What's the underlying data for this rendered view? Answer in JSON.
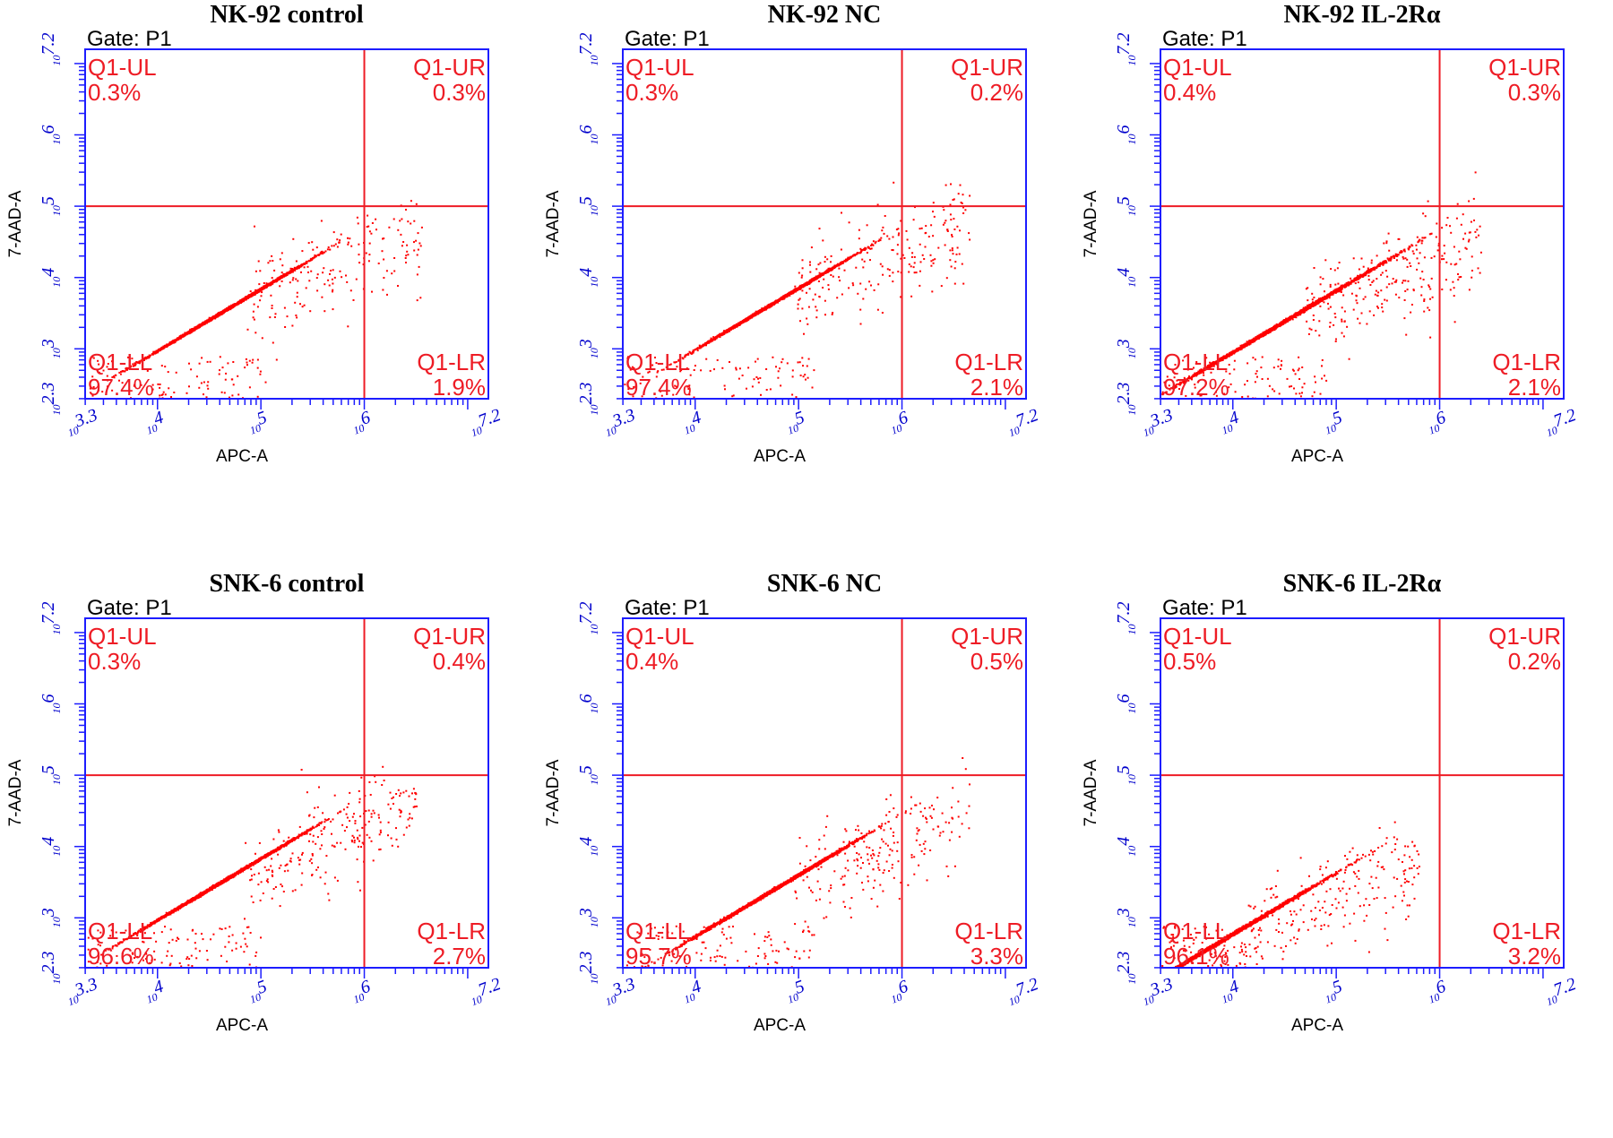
{
  "chart_data": [
    {
      "type": "scatter",
      "title": "NK-92 control",
      "gate": "Gate: P1",
      "xlabel": "APC-A",
      "ylabel": "7-AAD-A",
      "x_scale": "log",
      "y_scale": "log",
      "xlim_log10": [
        3.3,
        7.2
      ],
      "ylim_log10": [
        2.3,
        7.2
      ],
      "x_ticks": [
        "10^3.3",
        "10^4",
        "10^5",
        "10^6",
        "10^7.2"
      ],
      "y_ticks": [
        "10^2.3",
        "10^3",
        "10^4",
        "10^5",
        "10^6",
        "10^7.2"
      ],
      "gate_x_log10": 6.0,
      "gate_y_log10": 5.0,
      "quadrants": {
        "UL": {
          "name": "Q1-UL",
          "pct": "0.3%"
        },
        "UR": {
          "name": "Q1-UR",
          "pct": "0.3%"
        },
        "LL": {
          "name": "Q1-LL",
          "pct": "97.4%"
        },
        "LR": {
          "name": "Q1-LR",
          "pct": "1.9%"
        }
      },
      "cluster": {
        "cx_log10": 4.65,
        "cy_log10": 3.55,
        "spread": 0.38
      }
    },
    {
      "type": "scatter",
      "title": "NK-92 NC",
      "gate": "Gate: P1",
      "xlabel": "APC-A",
      "ylabel": "7-AAD-A",
      "x_scale": "log",
      "y_scale": "log",
      "xlim_log10": [
        3.3,
        7.2
      ],
      "ylim_log10": [
        2.3,
        7.2
      ],
      "x_ticks": [
        "10^3.3",
        "10^4",
        "10^5",
        "10^6",
        "10^7.2"
      ],
      "y_ticks": [
        "10^2.3",
        "10^3",
        "10^4",
        "10^5",
        "10^6",
        "10^7.2"
      ],
      "gate_x_log10": 6.0,
      "gate_y_log10": 5.0,
      "quadrants": {
        "UL": {
          "name": "Q1-UL",
          "pct": "0.3%"
        },
        "UR": {
          "name": "Q1-UR",
          "pct": "0.2%"
        },
        "LL": {
          "name": "Q1-LL",
          "pct": "97.4%"
        },
        "LR": {
          "name": "Q1-LR",
          "pct": "2.1%"
        }
      },
      "cluster": {
        "cx_log10": 4.75,
        "cy_log10": 3.65,
        "spread": 0.36
      }
    },
    {
      "type": "scatter",
      "title": "NK-92 IL-2Rα",
      "gate": "Gate: P1",
      "xlabel": "APC-A",
      "ylabel": "7-AAD-A",
      "x_scale": "log",
      "y_scale": "log",
      "xlim_log10": [
        3.3,
        7.2
      ],
      "ylim_log10": [
        2.3,
        7.2
      ],
      "x_ticks": [
        "10^3.3",
        "10^4",
        "10^5",
        "10^6",
        "10^7.2"
      ],
      "y_ticks": [
        "10^2.3",
        "10^3",
        "10^4",
        "10^5",
        "10^6",
        "10^7.2"
      ],
      "gate_x_log10": 6.0,
      "gate_y_log10": 5.0,
      "quadrants": {
        "UL": {
          "name": "Q1-UL",
          "pct": "0.4%"
        },
        "UR": {
          "name": "Q1-UR",
          "pct": "0.3%"
        },
        "LL": {
          "name": "Q1-LL",
          "pct": "97.2%"
        },
        "LR": {
          "name": "Q1-LR",
          "pct": "2.1%"
        }
      },
      "cluster": {
        "cx_log10": 4.5,
        "cy_log10": 3.4,
        "spread": 0.5
      }
    },
    {
      "type": "scatter",
      "title": "SNK-6 control",
      "gate": "Gate: P1",
      "xlabel": "APC-A",
      "ylabel": "7-AAD-A",
      "x_scale": "log",
      "y_scale": "log",
      "xlim_log10": [
        3.3,
        7.2
      ],
      "ylim_log10": [
        2.3,
        7.2
      ],
      "x_ticks": [
        "10^3.3",
        "10^4",
        "10^5",
        "10^6",
        "10^7.2"
      ],
      "y_ticks": [
        "10^2.3",
        "10^3",
        "10^4",
        "10^5",
        "10^6",
        "10^7.2"
      ],
      "gate_x_log10": 6.0,
      "gate_y_log10": 5.0,
      "quadrants": {
        "UL": {
          "name": "Q1-UL",
          "pct": "0.3%"
        },
        "UR": {
          "name": "Q1-UR",
          "pct": "0.4%"
        },
        "LL": {
          "name": "Q1-LL",
          "pct": "96.6%"
        },
        "LR": {
          "name": "Q1-LR",
          "pct": "2.7%"
        }
      },
      "cluster": {
        "cx_log10": 4.6,
        "cy_log10": 3.5,
        "spread": 0.4
      }
    },
    {
      "type": "scatter",
      "title": "SNK-6 NC",
      "gate": "Gate: P1",
      "xlabel": "APC-A",
      "ylabel": "7-AAD-A",
      "x_scale": "log",
      "y_scale": "log",
      "xlim_log10": [
        3.3,
        7.2
      ],
      "ylim_log10": [
        2.3,
        7.2
      ],
      "x_ticks": [
        "10^3.3",
        "10^4",
        "10^5",
        "10^6",
        "10^7.2"
      ],
      "y_ticks": [
        "10^2.3",
        "10^3",
        "10^4",
        "10^5",
        "10^6",
        "10^7.2"
      ],
      "gate_x_log10": 6.0,
      "gate_y_log10": 5.0,
      "quadrants": {
        "UL": {
          "name": "Q1-UL",
          "pct": "0.4%"
        },
        "UR": {
          "name": "Q1-UR",
          "pct": "0.5%"
        },
        "LL": {
          "name": "Q1-LL",
          "pct": "95.7%"
        },
        "LR": {
          "name": "Q1-LR",
          "pct": "3.3%"
        }
      },
      "cluster": {
        "cx_log10": 4.75,
        "cy_log10": 3.4,
        "spread": 0.42
      }
    },
    {
      "type": "scatter",
      "title": "SNK-6 IL-2Rα",
      "gate": "Gate: P1",
      "xlabel": "APC-A",
      "ylabel": "7-AAD-A",
      "x_scale": "log",
      "y_scale": "log",
      "xlim_log10": [
        3.3,
        7.2
      ],
      "ylim_log10": [
        2.3,
        7.2
      ],
      "x_ticks": [
        "10^3.3",
        "10^4",
        "10^5",
        "10^6",
        "10^7.2"
      ],
      "y_ticks": [
        "10^2.3",
        "10^3",
        "10^4",
        "10^5",
        "10^6",
        "10^7.2"
      ],
      "gate_x_log10": 6.0,
      "gate_y_log10": 5.0,
      "quadrants": {
        "UL": {
          "name": "Q1-UL",
          "pct": "0.5%"
        },
        "UR": {
          "name": "Q1-UR",
          "pct": "0.2%"
        },
        "LL": {
          "name": "Q1-LL",
          "pct": "96.1%"
        },
        "LR": {
          "name": "Q1-LR",
          "pct": "3.2%"
        }
      },
      "cluster": {
        "cx_log10": 3.9,
        "cy_log10": 2.7,
        "spread": 0.5
      }
    }
  ],
  "colors": {
    "frame": "#1d1dff",
    "gate": "#ee1c25",
    "dots": "#ff0000",
    "ticks": "#0000cc"
  }
}
